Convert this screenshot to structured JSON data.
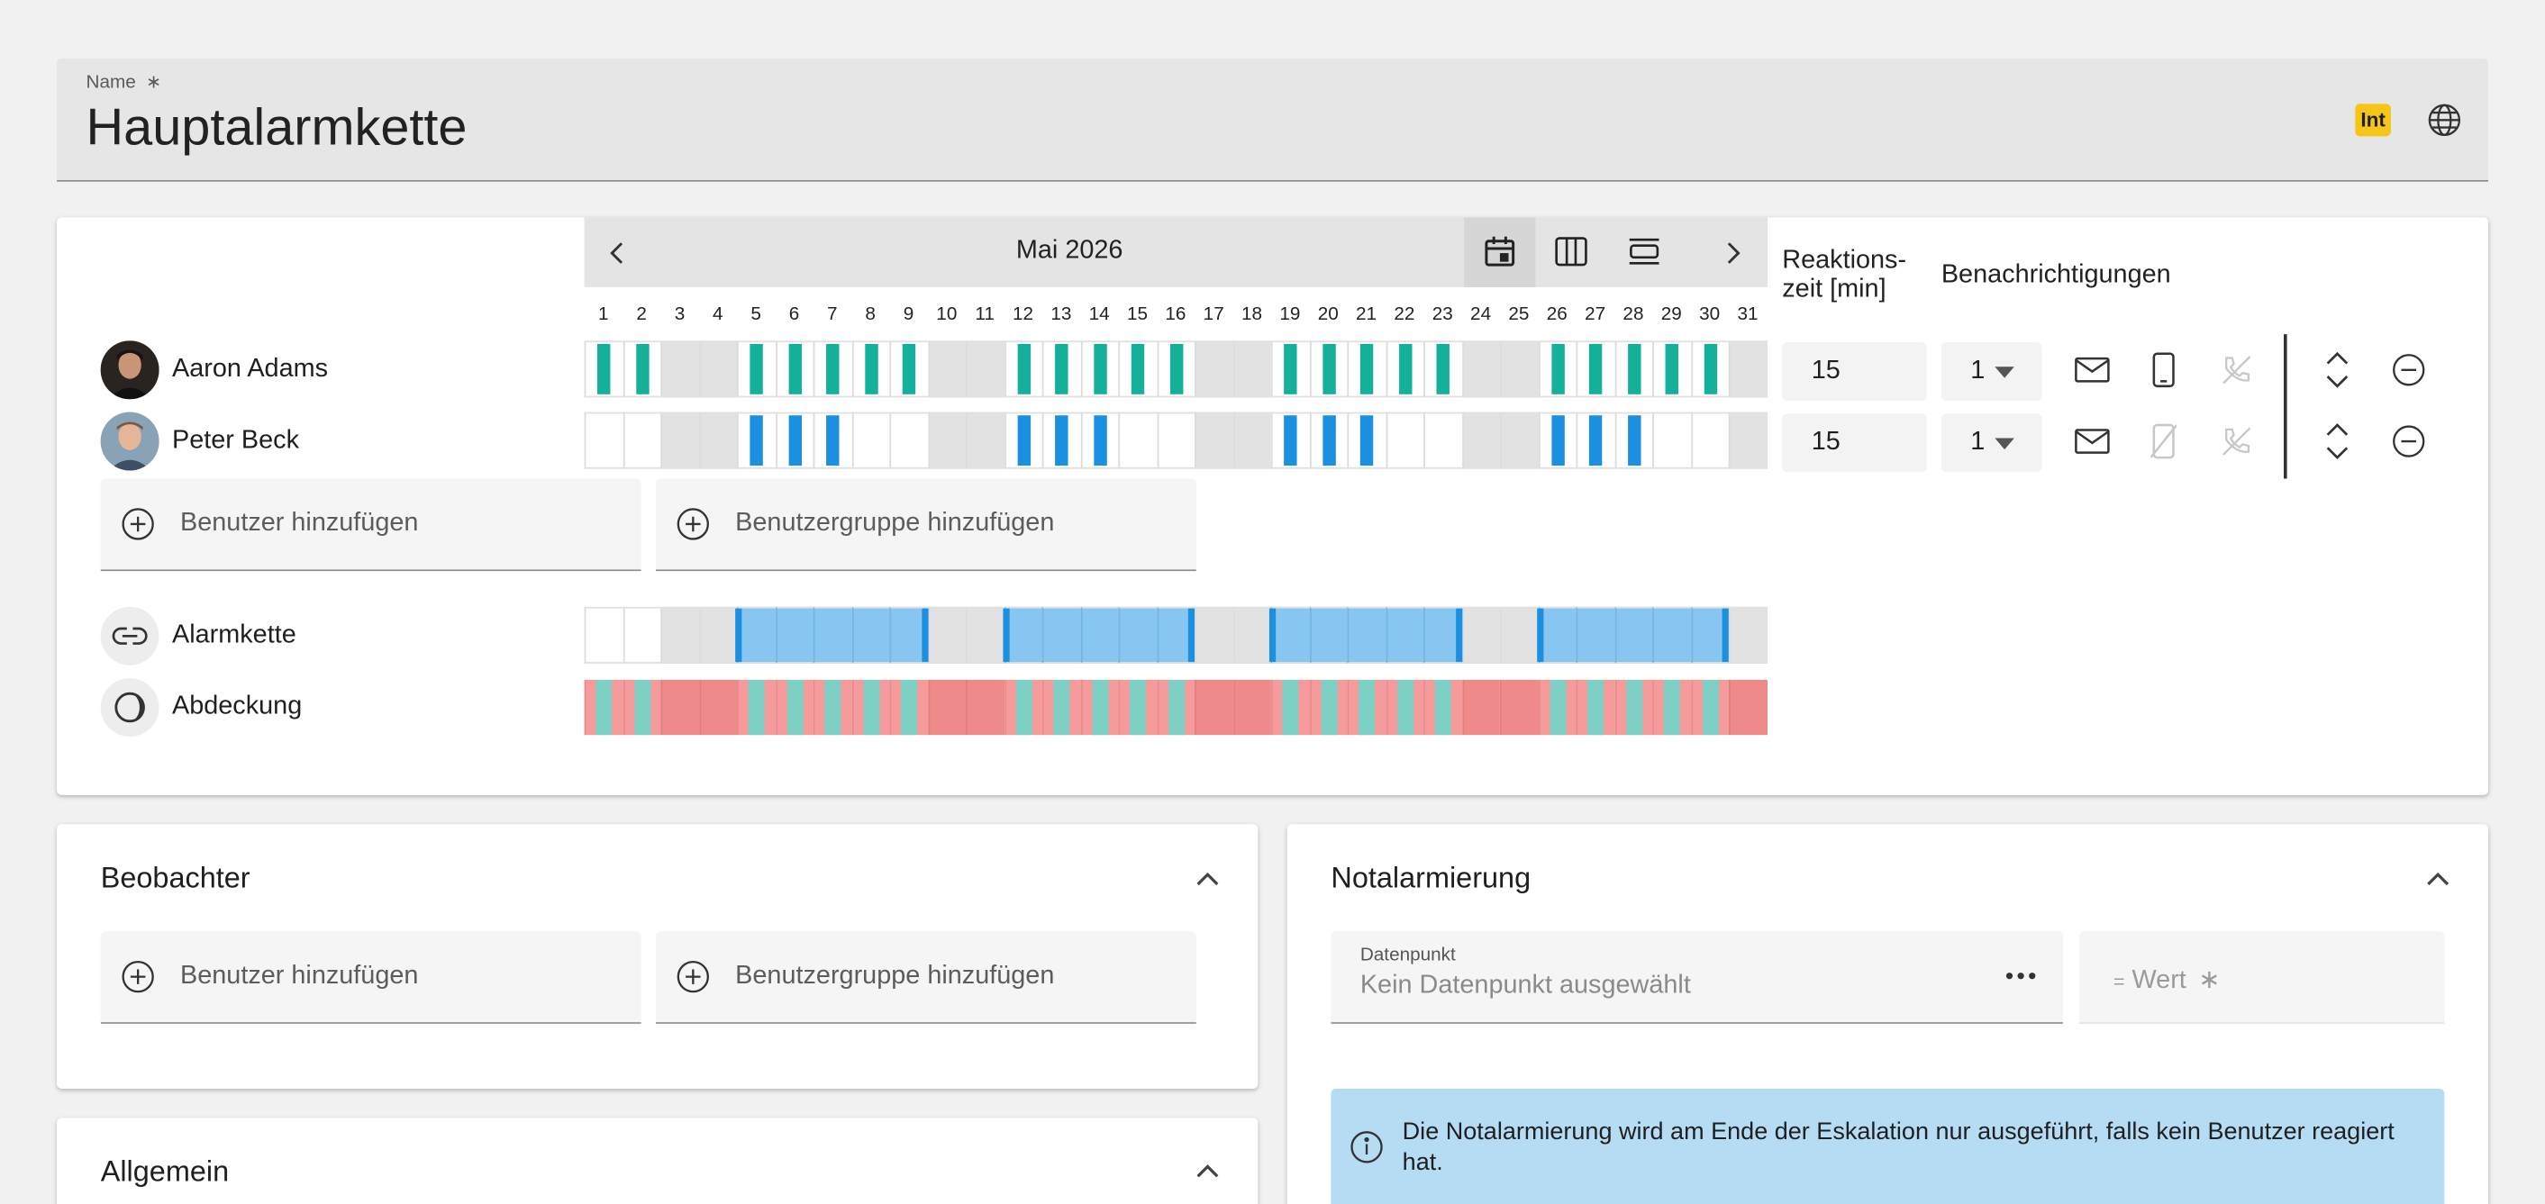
{
  "name_field": {
    "label": "Name",
    "required_mark": "∗",
    "value": "Hauptalarmkette",
    "badge": "Int"
  },
  "calendar": {
    "month_label": "Mai 2026",
    "days": [
      "1",
      "2",
      "3",
      "4",
      "5",
      "6",
      "7",
      "8",
      "9",
      "10",
      "11",
      "12",
      "13",
      "14",
      "15",
      "16",
      "17",
      "18",
      "19",
      "20",
      "21",
      "22",
      "23",
      "24",
      "25",
      "26",
      "27",
      "28",
      "29",
      "30",
      "31"
    ],
    "weekend_days": [
      3,
      4,
      10,
      11,
      17,
      18,
      24,
      25,
      31
    ],
    "reaction_header": "Reaktions-\nzeit [min]",
    "notifications_header": "Benachrichtigungen"
  },
  "members": [
    {
      "name": "Aaron Adams",
      "reaction_time": "15",
      "level": "1",
      "shift_color": "#15b09a",
      "shift_days": [
        1,
        2,
        5,
        6,
        7,
        8,
        9,
        12,
        13,
        14,
        15,
        16,
        19,
        20,
        21,
        22,
        23,
        26,
        27,
        28,
        29,
        30
      ]
    },
    {
      "name": "Peter Beck",
      "reaction_time": "15",
      "level": "1",
      "shift_color": "#1b8fe0",
      "shift_days": [
        5,
        6,
        7,
        12,
        13,
        14,
        19,
        20,
        21,
        26,
        27,
        28
      ]
    }
  ],
  "add_user_label": "Benutzer hinzufügen",
  "add_group_label": "Benutzergruppe hinzufügen",
  "alarmkette": {
    "label": "Alarmkette",
    "active_ranges": [
      [
        5,
        9
      ],
      [
        12,
        16
      ],
      [
        19,
        23
      ],
      [
        26,
        30
      ]
    ],
    "fill_color": "#87c6f0",
    "edge_color": "#1b8fe0"
  },
  "abdeckung": {
    "label": "Abdeckung",
    "alert_color": "#f59b9b",
    "ok_color": "#7fd0c4"
  },
  "beobachter": {
    "title": "Beobachter",
    "add_user_label": "Benutzer hinzufügen",
    "add_group_label": "Benutzergruppe hinzufügen"
  },
  "allgemein": {
    "title": "Allgemein"
  },
  "notalarmierung": {
    "title": "Notalarmierung",
    "datapoint_label": "Datenpunkt",
    "datapoint_placeholder": "Kein Datenpunkt ausgewählt",
    "value_prefix": "=",
    "value_placeholder": "Wert",
    "value_required": "∗",
    "info_text": "Die Notalarmierung wird am Ende der Eskalation nur ausgeführt, falls kein Benutzer reagiert hat."
  },
  "colors": {
    "accent_yellow": "#f5c518",
    "teal": "#15b09a",
    "blue": "#1b8fe0"
  }
}
